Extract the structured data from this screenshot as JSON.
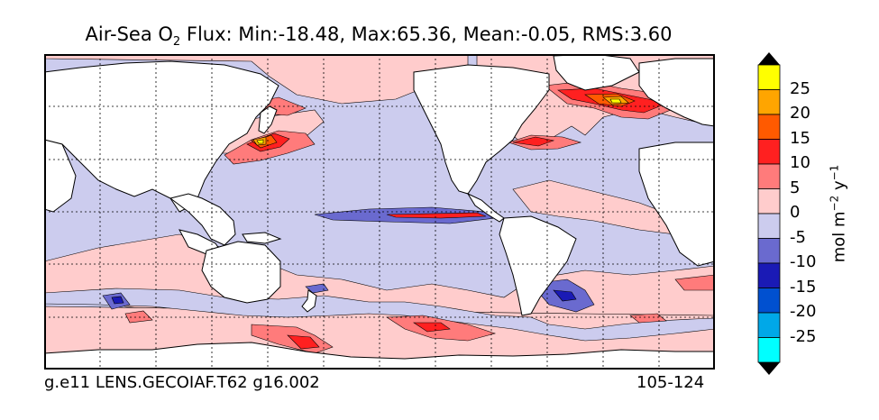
{
  "title": {
    "prefix": "Air-Sea O",
    "subscript": "2",
    "suffix": " Flux: Min:-18.48, Max:65.36, Mean:-0.05, RMS:3.60"
  },
  "footer": {
    "case_name": "g.e11 LENS.GECOIAF.T62 g16.002",
    "years": "105-124"
  },
  "colorbar": {
    "units": {
      "base": "mol m",
      "exp1": "−2",
      "mid": " y",
      "exp2": "−1"
    },
    "levels": [
      {
        "label": "25",
        "color": "#ffff00"
      },
      {
        "label": "20",
        "color": "#ffa500"
      },
      {
        "label": "15",
        "color": "#ff5a00"
      },
      {
        "label": "10",
        "color": "#ff2020"
      },
      {
        "label": "5",
        "color": "#ff7b7b"
      },
      {
        "label": "0",
        "color": "#ffcccc"
      },
      {
        "label": "-5",
        "color": "#ccccee"
      },
      {
        "label": "-10",
        "color": "#6a6acf"
      },
      {
        "label": "-15",
        "color": "#1a1ab5"
      },
      {
        "label": "-20",
        "color": "#0050d0"
      },
      {
        "label": "-25",
        "color": "#00a8e8"
      },
      {
        "label": "",
        "color": "#00ffff"
      }
    ],
    "over_color": "#000000",
    "under_color": "#000000"
  },
  "map": {
    "ocean_background": "#ccccee",
    "land_color": "#ffffff",
    "gridlines": "dotted"
  }
}
